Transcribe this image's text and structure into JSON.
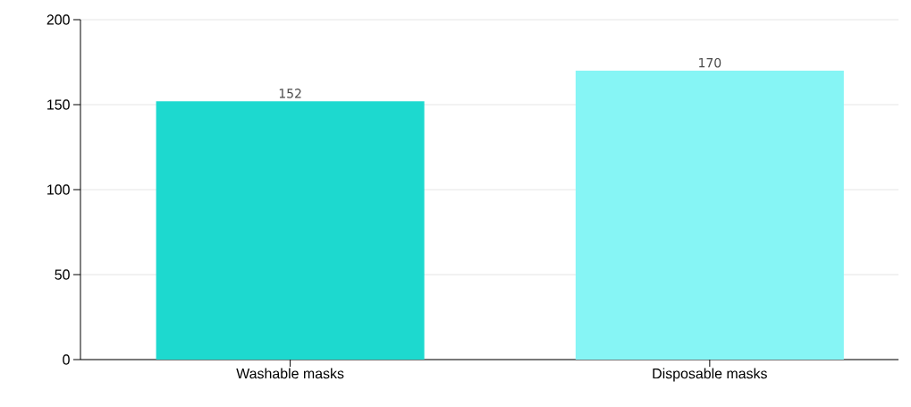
{
  "chart_data": {
    "type": "bar",
    "categories": [
      "Washable masks",
      "Disposable masks"
    ],
    "values": [
      152,
      170
    ],
    "colors": [
      "#1dd9cf",
      "#86f5f5"
    ],
    "ylim": [
      0,
      200
    ],
    "yticks": [
      0,
      50,
      100,
      150,
      200
    ],
    "grid": "y",
    "data_labels": true
  }
}
